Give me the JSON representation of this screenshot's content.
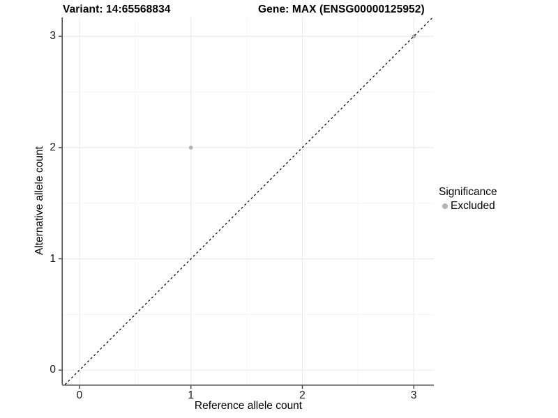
{
  "chart_data": {
    "type": "scatter",
    "title_left": "Variant: 14:65568834",
    "title_right": "Gene: MAX (ENSG00000125952)",
    "xlabel": "Reference allele count",
    "ylabel": "Alternative allele count",
    "xlim": [
      -0.15,
      3.18
    ],
    "ylim": [
      -0.13,
      3.17
    ],
    "x_ticks": [
      0,
      1,
      2,
      3
    ],
    "y_ticks": [
      0,
      1,
      2,
      3
    ],
    "x_minor_ticks": [
      0.5,
      1.5,
      2.5
    ],
    "y_minor_ticks": [
      0.5,
      1.5,
      2.5
    ],
    "grid": "on",
    "points": [
      {
        "x": 1,
        "y": 2,
        "series": "Excluded"
      },
      {
        "x": 3,
        "y": 3,
        "series": "Excluded"
      }
    ],
    "reference_line": {
      "kind": "identity",
      "style": "dashed",
      "color": "#000000"
    },
    "legend": {
      "title": "Significance",
      "position": "right",
      "items": [
        {
          "label": "Excluded",
          "color": "#b3b3b3",
          "marker": "circle"
        }
      ]
    },
    "colors": {
      "point": "#b3b3b3",
      "grid_major": "#e9e9e9",
      "grid_minor": "#f4f4f4",
      "axis_line": "#4f4f4f",
      "tick_mark": "#333333",
      "background": "#ffffff"
    }
  }
}
